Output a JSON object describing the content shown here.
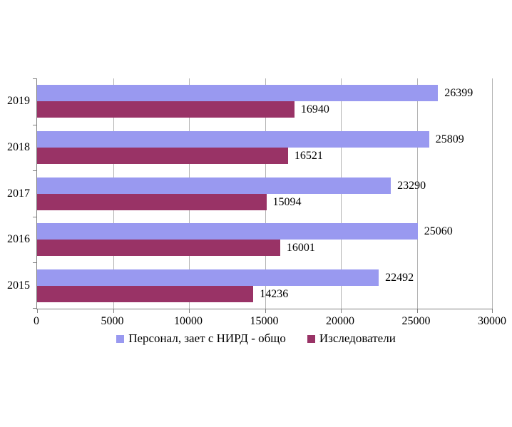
{
  "chart_data": {
    "type": "bar",
    "orientation": "horizontal",
    "title": "",
    "categories": [
      "2019",
      "2018",
      "2017",
      "2016",
      "2015"
    ],
    "series": [
      {
        "name": "Персонал, зает с НИРД - общо",
        "color": "#9999F0",
        "values": [
          26399,
          25809,
          23290,
          25060,
          22492
        ]
      },
      {
        "name": "Изследователи",
        "color": "#993366",
        "values": [
          16940,
          16521,
          15094,
          16001,
          14236
        ]
      }
    ],
    "xlim": [
      0,
      30000
    ],
    "xticks": [
      0,
      5000,
      10000,
      15000,
      20000,
      25000,
      30000
    ],
    "grid": "vertical",
    "legend_position": "bottom",
    "value_labels": "outside-end"
  },
  "colors": {
    "background": "#FFFFFF",
    "axis": "#808080",
    "gridline": "#B3B3B3",
    "text": "#000000"
  }
}
